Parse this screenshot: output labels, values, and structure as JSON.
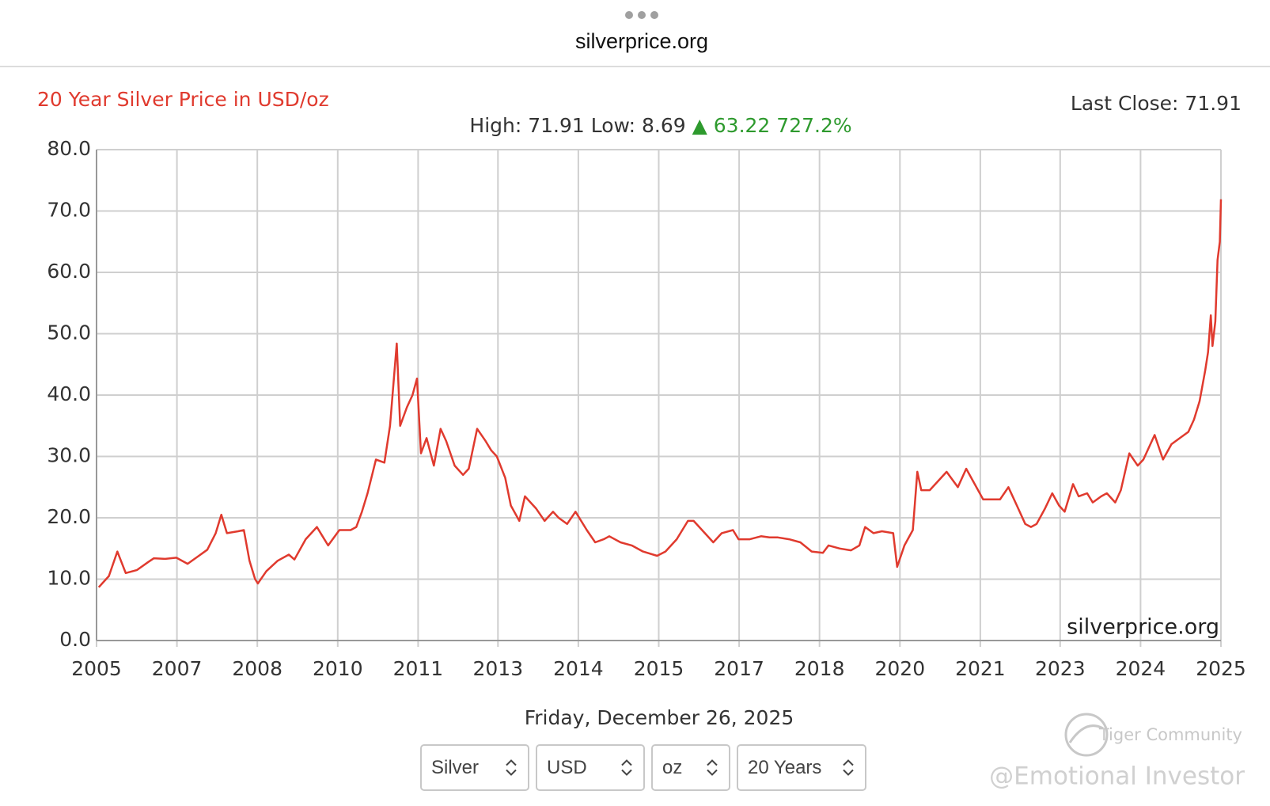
{
  "browser": {
    "url": "silverprice.org"
  },
  "chart_data": {
    "type": "line",
    "title": "20 Year Silver Price in USD/oz",
    "last_close": "Last Close: 71.91",
    "stats": "High: 71.91 Low: 8.69",
    "change": "▲ 63.22 727.2%",
    "watermark": "silverprice.org",
    "date": "Friday, December 26, 2025",
    "color": "#e03a2e",
    "grid": true,
    "xlim": [
      2005.98,
      2025.98
    ],
    "ylim": [
      0,
      80
    ],
    "yticks": [
      {
        "value": 0,
        "label": "0.0"
      },
      {
        "value": 10,
        "label": "10.0"
      },
      {
        "value": 20,
        "label": "20.0"
      },
      {
        "value": 30,
        "label": "30.0"
      },
      {
        "value": 40,
        "label": "40.0"
      },
      {
        "value": 50,
        "label": "50.0"
      },
      {
        "value": 60,
        "label": "60.0"
      },
      {
        "value": 70,
        "label": "70.0"
      },
      {
        "value": 80,
        "label": "80.0"
      }
    ],
    "xticks": [
      {
        "value": 2005.98,
        "label": "2005"
      },
      {
        "value": 2007.41,
        "label": "2007"
      },
      {
        "value": 2008.84,
        "label": "2008"
      },
      {
        "value": 2010.27,
        "label": "2010"
      },
      {
        "value": 2011.7,
        "label": "2011"
      },
      {
        "value": 2013.12,
        "label": "2013"
      },
      {
        "value": 2014.55,
        "label": "2014"
      },
      {
        "value": 2015.98,
        "label": "2015"
      },
      {
        "value": 2017.41,
        "label": "2017"
      },
      {
        "value": 2018.84,
        "label": "2018"
      },
      {
        "value": 2020.27,
        "label": "2020"
      },
      {
        "value": 2021.7,
        "label": "2021"
      },
      {
        "value": 2023.12,
        "label": "2023"
      },
      {
        "value": 2024.55,
        "label": "2024"
      },
      {
        "value": 2025.98,
        "label": "2025"
      }
    ],
    "x": [
      2006.02,
      2006.2,
      2006.35,
      2006.5,
      2006.7,
      2006.9,
      2007.0,
      2007.2,
      2007.4,
      2007.6,
      2007.8,
      2007.95,
      2008.1,
      2008.2,
      2008.3,
      2008.5,
      2008.6,
      2008.7,
      2008.8,
      2008.85,
      2009.0,
      2009.2,
      2009.4,
      2009.5,
      2009.7,
      2009.9,
      2010.0,
      2010.1,
      2010.3,
      2010.5,
      2010.6,
      2010.7,
      2010.8,
      2010.95,
      2011.1,
      2011.2,
      2011.32,
      2011.38,
      2011.5,
      2011.6,
      2011.68,
      2011.75,
      2011.85,
      2011.98,
      2012.1,
      2012.2,
      2012.35,
      2012.5,
      2012.6,
      2012.75,
      2012.9,
      2013.0,
      2013.1,
      2013.25,
      2013.35,
      2013.5,
      2013.6,
      2013.8,
      2013.95,
      2014.1,
      2014.2,
      2014.35,
      2014.5,
      2014.7,
      2014.85,
      2015.0,
      2015.1,
      2015.3,
      2015.5,
      2015.7,
      2015.95,
      2016.1,
      2016.3,
      2016.5,
      2016.6,
      2016.8,
      2016.95,
      2017.1,
      2017.3,
      2017.4,
      2017.6,
      2017.8,
      2017.95,
      2018.1,
      2018.3,
      2018.5,
      2018.7,
      2018.9,
      2019.0,
      2019.2,
      2019.4,
      2019.55,
      2019.65,
      2019.8,
      2019.95,
      2020.15,
      2020.22,
      2020.35,
      2020.5,
      2020.58,
      2020.65,
      2020.8,
      2021.0,
      2021.1,
      2021.3,
      2021.45,
      2021.6,
      2021.75,
      2021.9,
      2022.05,
      2022.2,
      2022.35,
      2022.5,
      2022.6,
      2022.7,
      2022.85,
      2022.98,
      2023.1,
      2023.2,
      2023.35,
      2023.45,
      2023.6,
      2023.7,
      2023.85,
      2023.95,
      2024.1,
      2024.2,
      2024.35,
      2024.5,
      2024.6,
      2024.8,
      2024.95,
      2025.1,
      2025.25,
      2025.4,
      2025.5,
      2025.6,
      2025.7,
      2025.75,
      2025.8,
      2025.83,
      2025.88,
      2025.92,
      2025.96,
      2025.98
    ],
    "values": [
      8.69,
      10.5,
      14.5,
      11,
      11.5,
      12.8,
      13.4,
      13.3,
      13.5,
      12.5,
      13.8,
      14.8,
      17.5,
      20.5,
      17.5,
      17.8,
      18,
      13,
      10,
      9.3,
      11.3,
      13,
      14,
      13.2,
      16.5,
      18.5,
      17,
      15.5,
      18,
      18,
      18.5,
      21,
      24,
      29.5,
      29,
      35,
      48.4,
      35,
      38,
      40,
      42.7,
      30.5,
      33,
      28.5,
      34.5,
      32.5,
      28.5,
      27,
      28,
      34.5,
      32.5,
      31,
      30,
      26.5,
      22,
      19.5,
      23.5,
      21.5,
      19.5,
      21,
      20,
      19,
      21,
      18,
      16,
      16.5,
      17,
      16,
      15.5,
      14.5,
      13.8,
      14.5,
      16.5,
      19.5,
      19.5,
      17.5,
      16,
      17.5,
      18,
      16.5,
      16.5,
      17,
      16.8,
      16.8,
      16.5,
      16,
      14.5,
      14.3,
      15.5,
      15,
      14.7,
      15.5,
      18.5,
      17.5,
      17.8,
      17.5,
      12,
      15.5,
      18,
      27.5,
      24.5,
      24.5,
      26.5,
      27.5,
      25,
      28,
      25.5,
      23,
      23,
      23,
      25,
      22,
      19,
      18.5,
      19,
      21.5,
      24,
      22,
      21,
      25.5,
      23.5,
      24,
      22.5,
      23.5,
      24,
      22.5,
      24.5,
      30.5,
      28.5,
      29.5,
      33.5,
      29.5,
      32,
      33,
      34,
      36,
      39,
      44,
      47,
      53,
      48,
      52,
      62,
      65,
      71.91
    ]
  },
  "controls": [
    "Silver",
    "USD",
    "oz",
    "20 Years"
  ],
  "overlay": {
    "brand": "Tiger Community",
    "handle": "@Emotional Investor"
  }
}
